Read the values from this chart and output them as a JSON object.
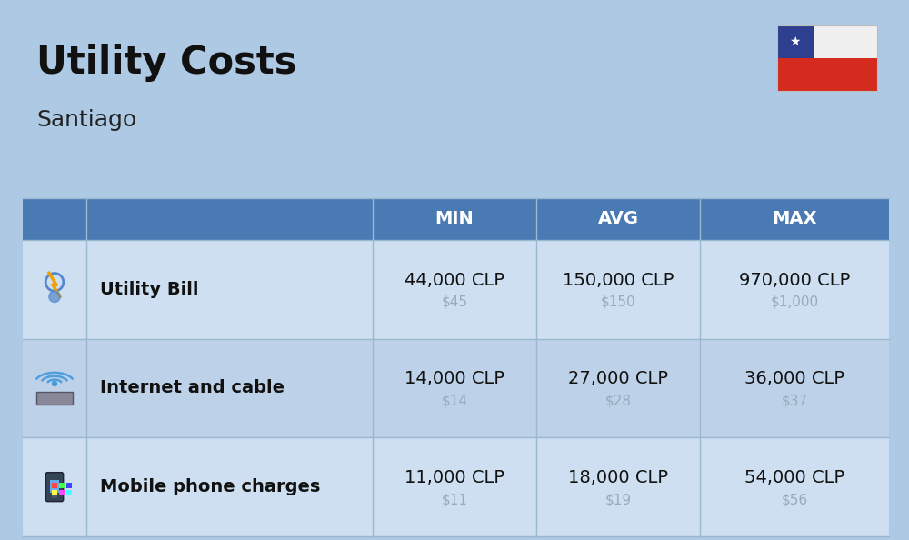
{
  "title": "Utility Costs",
  "subtitle": "Santiago",
  "background_color": "#adc9e3",
  "header_bg_color": "#4a7ab3",
  "header_text_color": "#ffffff",
  "row_bg_color_1": "#cddff0",
  "row_bg_color_2": "#bdd2e8",
  "divider_color": "#9ab8d0",
  "usd_color": "#9aaabb",
  "rows": [
    {
      "label": "Utility Bill",
      "min_clp": "44,000 CLP",
      "min_usd": "$45",
      "avg_clp": "150,000 CLP",
      "avg_usd": "$150",
      "max_clp": "970,000 CLP",
      "max_usd": "$1,000"
    },
    {
      "label": "Internet and cable",
      "min_clp": "14,000 CLP",
      "min_usd": "$14",
      "avg_clp": "27,000 CLP",
      "avg_usd": "$28",
      "max_clp": "36,000 CLP",
      "max_usd": "$37"
    },
    {
      "label": "Mobile phone charges",
      "min_clp": "11,000 CLP",
      "min_usd": "$11",
      "avg_clp": "18,000 CLP",
      "avg_usd": "$19",
      "max_clp": "54,000 CLP",
      "max_usd": "$56"
    }
  ],
  "title_fontsize": 30,
  "subtitle_fontsize": 18,
  "header_fontsize": 14,
  "label_fontsize": 14,
  "value_fontsize": 14,
  "usd_fontsize": 11,
  "flag_color_blue": "#2D3F8E",
  "flag_color_red": "#D52B1E",
  "flag_color_white": "#F0F0F0"
}
